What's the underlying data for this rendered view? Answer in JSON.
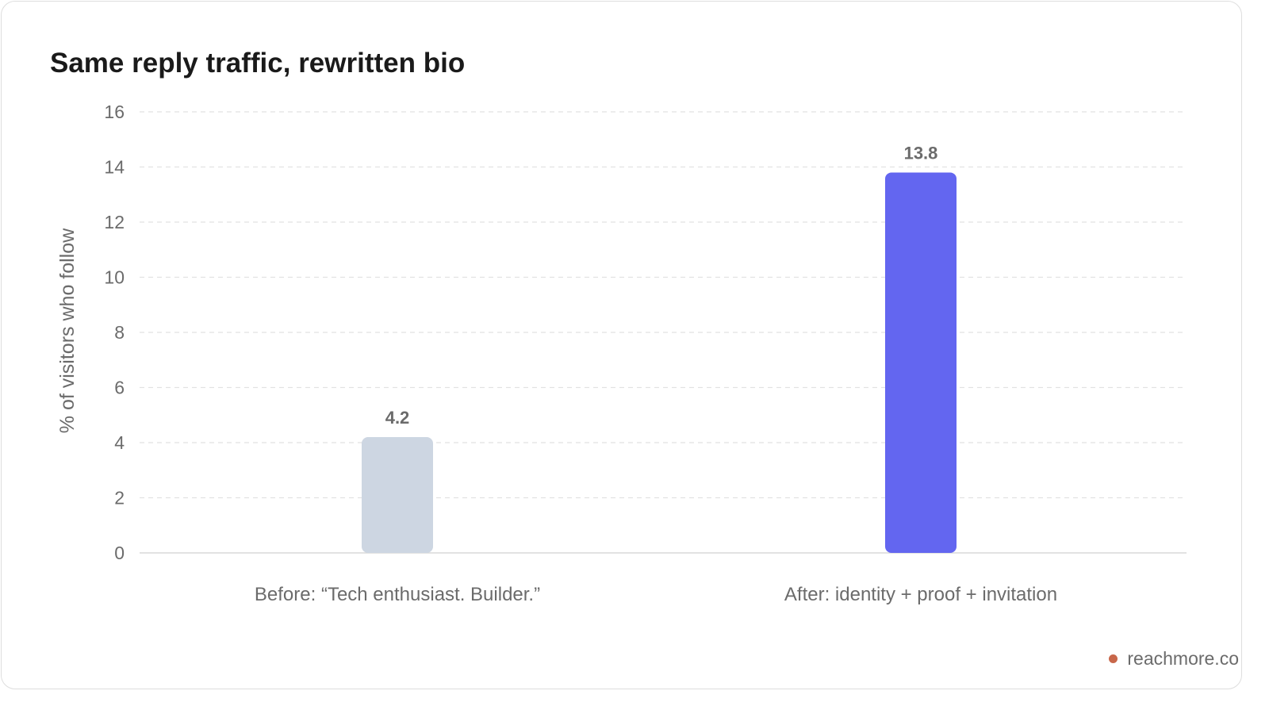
{
  "chart_data": {
    "type": "bar",
    "title": "Same reply traffic, rewritten bio",
    "xlabel": "",
    "ylabel": "% of visitors who follow",
    "categories": [
      "Before: “Tech enthusiast. Builder.”",
      "After: identity + proof + invitation"
    ],
    "values": [
      4.2,
      13.8
    ],
    "data_labels": [
      "4.2",
      "13.8"
    ],
    "bar_colors": [
      "#cdd6e2",
      "#6366f0"
    ],
    "ylim": [
      0,
      16
    ],
    "yticks": [
      0,
      2,
      4,
      6,
      8,
      10,
      12,
      14,
      16
    ],
    "grid": true,
    "legend": "none"
  },
  "source": {
    "label": "reachmore.co",
    "dot_color": "#c8674a"
  }
}
